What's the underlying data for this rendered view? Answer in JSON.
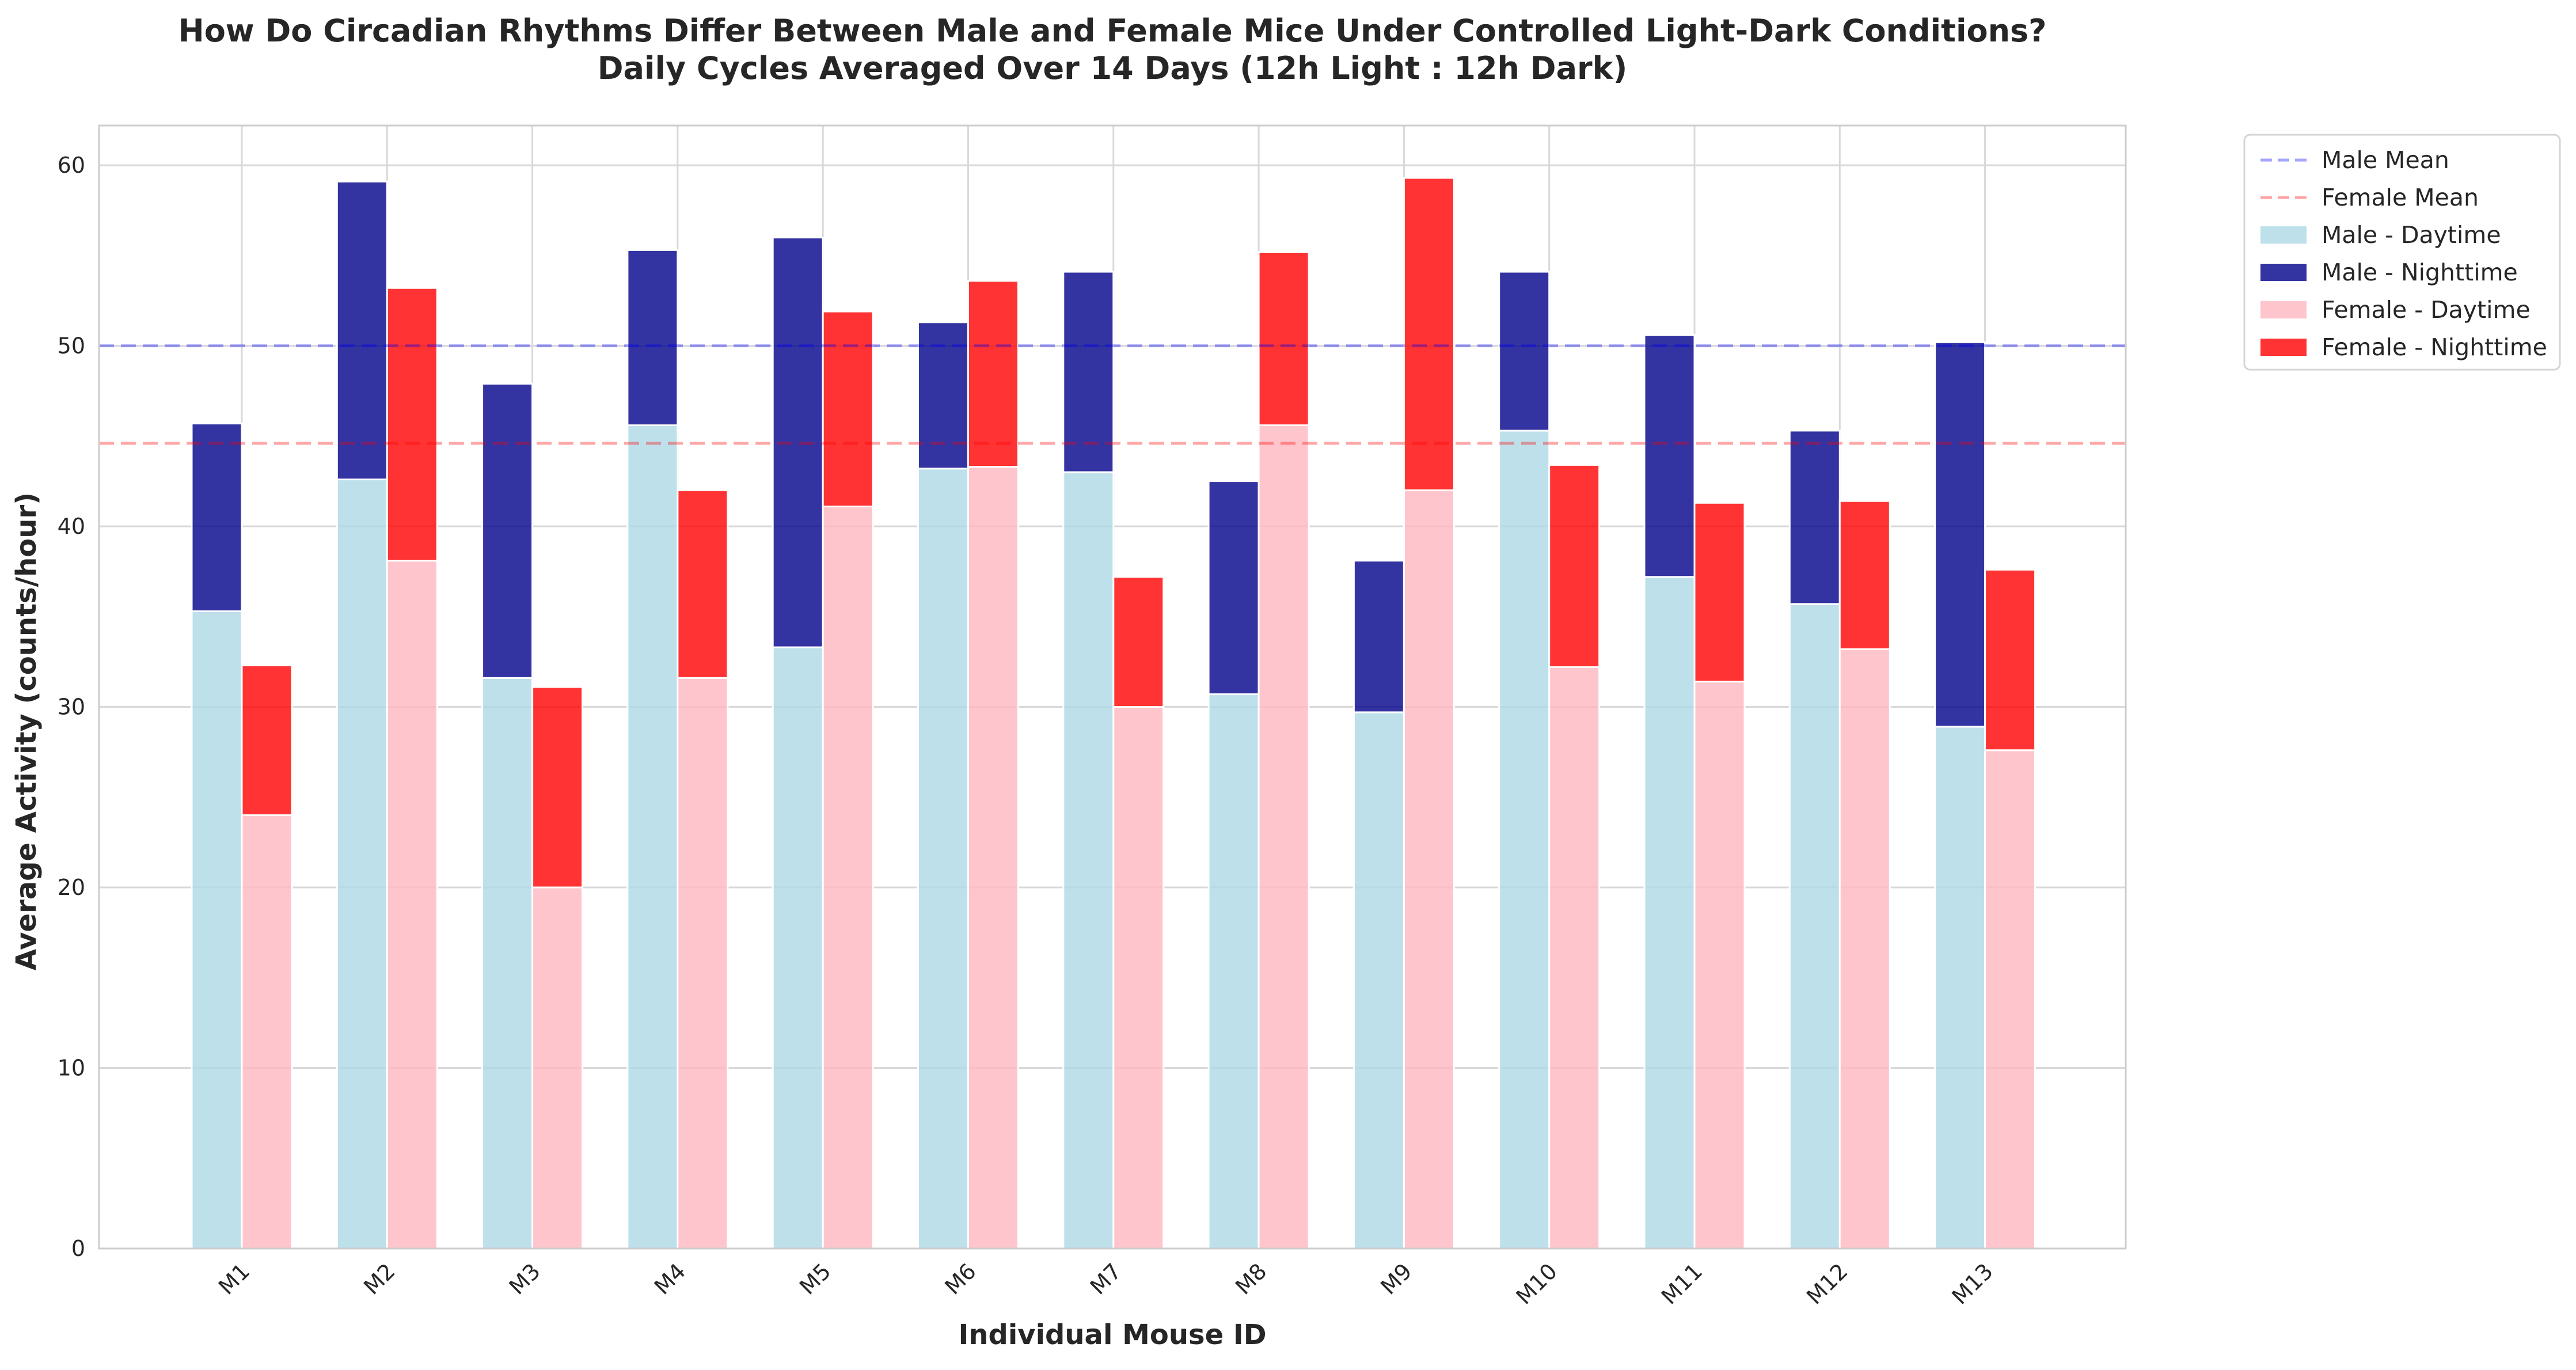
{
  "chart_data": {
    "type": "bar",
    "title": "How Do Circadian Rhythms Differ Between Male and Female Mice Under Controlled Light-Dark Conditions?",
    "subtitle": "Daily Cycles Averaged Over 14 Days (12h Light : 12h Dark)",
    "xlabel": "Individual Mouse ID",
    "ylabel": "Average Activity (counts/hour)",
    "ylim": [
      0,
      62.2
    ],
    "yticks": [
      0,
      10,
      20,
      30,
      40,
      50,
      60
    ],
    "grid": true,
    "legend_placement": "outside top-right",
    "categories": [
      "M1",
      "M2",
      "M3",
      "M4",
      "M5",
      "M6",
      "M7",
      "M8",
      "M9",
      "M10",
      "M11",
      "M12",
      "M13"
    ],
    "series": [
      {
        "name": "Male - Daytime",
        "group": "male",
        "color": "#add8e6",
        "values": [
          35.3,
          42.6,
          31.6,
          45.6,
          33.3,
          43.2,
          43.0,
          30.7,
          29.7,
          45.3,
          37.2,
          35.7,
          28.9
        ]
      },
      {
        "name": "Male - Nighttime",
        "group": "male",
        "color": "#00008b",
        "values": [
          10.4,
          16.5,
          16.3,
          9.7,
          22.7,
          8.1,
          11.1,
          11.8,
          8.4,
          8.8,
          13.4,
          9.6,
          21.3
        ]
      },
      {
        "name": "Female - Daytime",
        "group": "female",
        "color": "#ffb6c1",
        "values": [
          24.0,
          38.1,
          20.0,
          31.6,
          41.1,
          43.3,
          30.0,
          45.6,
          42.0,
          32.2,
          31.4,
          33.2,
          27.6
        ]
      },
      {
        "name": "Female - Nighttime",
        "group": "female",
        "color": "#ff0000",
        "values": [
          8.3,
          15.1,
          11.1,
          10.4,
          10.8,
          10.3,
          7.2,
          9.6,
          17.3,
          11.2,
          9.9,
          8.2,
          10.0
        ]
      }
    ],
    "reference_lines": [
      {
        "name": "Male Mean",
        "value": 50.0,
        "color": "#0000ff"
      },
      {
        "name": "Female Mean",
        "value": 44.6,
        "color": "#ff0000"
      }
    ],
    "legend": [
      "Male Mean",
      "Female Mean",
      "Male - Daytime",
      "Male - Nighttime",
      "Female - Daytime",
      "Female - Nighttime"
    ]
  }
}
